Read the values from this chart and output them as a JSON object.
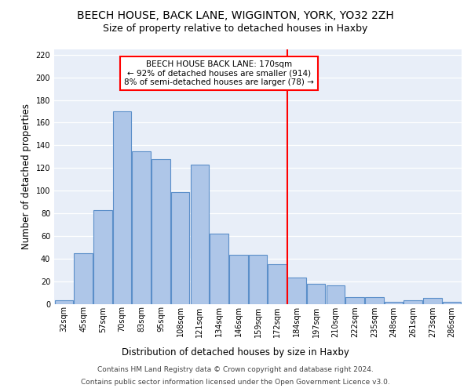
{
  "title1": "BEECH HOUSE, BACK LANE, WIGGINTON, YORK, YO32 2ZH",
  "title2": "Size of property relative to detached houses in Haxby",
  "xlabel": "Distribution of detached houses by size in Haxby",
  "ylabel": "Number of detached properties",
  "categories": [
    "32sqm",
    "45sqm",
    "57sqm",
    "70sqm",
    "83sqm",
    "95sqm",
    "108sqm",
    "121sqm",
    "134sqm",
    "146sqm",
    "159sqm",
    "172sqm",
    "184sqm",
    "197sqm",
    "210sqm",
    "222sqm",
    "235sqm",
    "248sqm",
    "261sqm",
    "273sqm",
    "286sqm"
  ],
  "values": [
    3,
    45,
    83,
    170,
    135,
    128,
    99,
    123,
    62,
    43,
    43,
    35,
    23,
    18,
    16,
    6,
    6,
    2,
    3,
    5,
    2
  ],
  "bar_color": "#aec6e8",
  "bar_edge_color": "#5b8fc9",
  "red_line_index": 11,
  "annotation_text1": "BEECH HOUSE BACK LANE: 170sqm",
  "annotation_text2": "← 92% of detached houses are smaller (914)",
  "annotation_text3": "8% of semi-detached houses are larger (78) →",
  "footnote1": "Contains HM Land Registry data © Crown copyright and database right 2024.",
  "footnote2": "Contains public sector information licensed under the Open Government Licence v3.0.",
  "ylim": [
    0,
    225
  ],
  "yticks": [
    0,
    20,
    40,
    60,
    80,
    100,
    120,
    140,
    160,
    180,
    200,
    220
  ],
  "bg_color": "#e8eef8",
  "grid_color": "#ffffff",
  "title1_fontsize": 10,
  "title2_fontsize": 9,
  "xlabel_fontsize": 8.5,
  "ylabel_fontsize": 8.5,
  "tick_fontsize": 7,
  "footnote_fontsize": 6.5,
  "ann_fontsize": 7.5
}
